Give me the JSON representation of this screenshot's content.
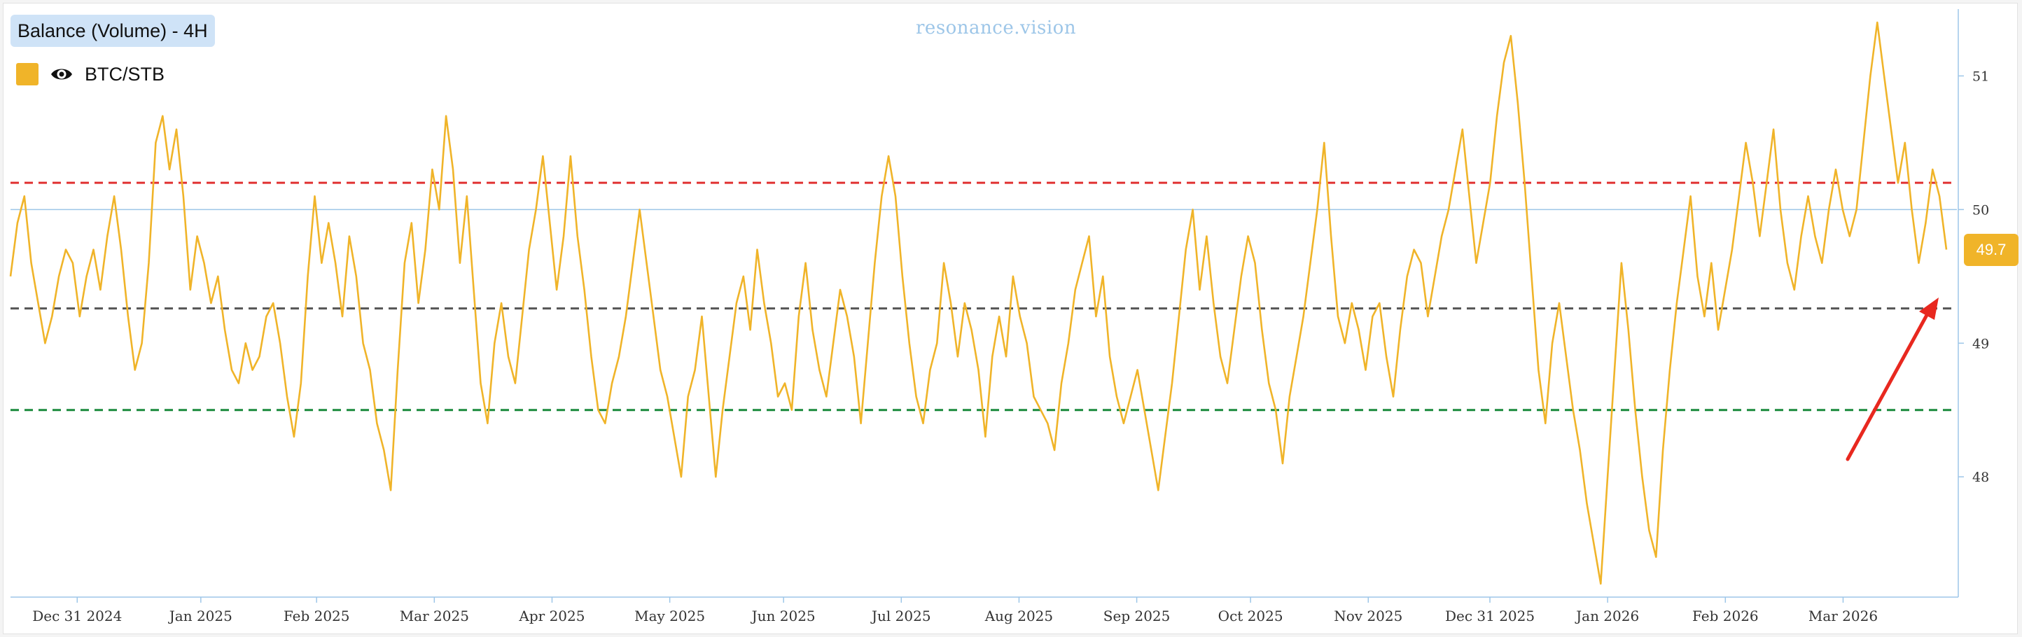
{
  "header": {
    "title": "Balance (Volume) - 4H",
    "watermark": "resonance.vision"
  },
  "legend": {
    "label": "BTC/STB",
    "color": "#f0b429",
    "icon": "eye-icon"
  },
  "current_value_label": "49.7",
  "colors": {
    "series": "#f0b429",
    "red_line": "#e03131",
    "gray_line": "#555555",
    "green_line": "#1a8a3c",
    "reference_line": "#9dc6e8",
    "axis": "#9dc6e8",
    "arrow": "#e8281f"
  },
  "chart_data": {
    "type": "line",
    "title": "Balance (Volume) - 4H",
    "series_name": "BTC/STB",
    "ylim": [
      47.1,
      51.5
    ],
    "y_ticks": [
      48,
      49,
      50,
      51
    ],
    "x_tick_labels": [
      "Dec 31 2024",
      "Jan 2025",
      "Feb 2025",
      "Mar 2025",
      "Apr 2025",
      "May 2025",
      "Jun 2025",
      "Jul 2025",
      "Aug 2025",
      "Sep 2025",
      "Oct 2025",
      "Nov 2025",
      "Dec 31 2025",
      "Jan 2026",
      "Feb 2026",
      "Mar 2026"
    ],
    "x_tick_index": [
      0.6,
      3.75,
      6.7,
      9.7,
      12.7,
      15.7,
      18.6,
      21.6,
      24.6,
      27.6,
      30.5,
      33.5,
      36.6,
      39.6,
      42.6,
      45.6
    ],
    "x_range": [
      -1.1,
      48.5
    ],
    "horizontal_lines": [
      {
        "name": "red-dashed",
        "value": 50.2,
        "style": "dashed"
      },
      {
        "name": "reference",
        "value": 50.0,
        "style": "solid"
      },
      {
        "name": "gray-dashed",
        "value": 49.26,
        "style": "dashed"
      },
      {
        "name": "green-dashed",
        "value": 48.5,
        "style": "dashed"
      }
    ],
    "last_value": 49.7,
    "values": [
      49.5,
      49.9,
      50.1,
      49.6,
      49.3,
      49.0,
      49.2,
      49.5,
      49.7,
      49.6,
      49.2,
      49.5,
      49.7,
      49.4,
      49.8,
      50.1,
      49.7,
      49.2,
      48.8,
      49.0,
      49.6,
      50.5,
      50.7,
      50.3,
      50.6,
      50.1,
      49.4,
      49.8,
      49.6,
      49.3,
      49.5,
      49.1,
      48.8,
      48.7,
      49.0,
      48.8,
      48.9,
      49.2,
      49.3,
      49.0,
      48.6,
      48.3,
      48.7,
      49.5,
      50.1,
      49.6,
      49.9,
      49.6,
      49.2,
      49.8,
      49.5,
      49.0,
      48.8,
      48.4,
      48.2,
      47.9,
      48.8,
      49.6,
      49.9,
      49.3,
      49.7,
      50.3,
      50.0,
      50.7,
      50.3,
      49.6,
      50.1,
      49.4,
      48.7,
      48.4,
      49.0,
      49.3,
      48.9,
      48.7,
      49.2,
      49.7,
      50.0,
      50.4,
      49.9,
      49.4,
      49.8,
      50.4,
      49.8,
      49.4,
      48.9,
      48.5,
      48.4,
      48.7,
      48.9,
      49.2,
      49.6,
      50.0,
      49.6,
      49.2,
      48.8,
      48.6,
      48.3,
      48.0,
      48.6,
      48.8,
      49.2,
      48.6,
      48.0,
      48.5,
      48.9,
      49.3,
      49.5,
      49.1,
      49.7,
      49.3,
      49.0,
      48.6,
      48.7,
      48.5,
      49.2,
      49.6,
      49.1,
      48.8,
      48.6,
      49.0,
      49.4,
      49.2,
      48.9,
      48.4,
      49.0,
      49.6,
      50.1,
      50.4,
      50.1,
      49.5,
      49.0,
      48.6,
      48.4,
      48.8,
      49.0,
      49.6,
      49.3,
      48.9,
      49.3,
      49.1,
      48.8,
      48.3,
      48.9,
      49.2,
      48.9,
      49.5,
      49.2,
      49.0,
      48.6,
      48.5,
      48.4,
      48.2,
      48.7,
      49.0,
      49.4,
      49.6,
      49.8,
      49.2,
      49.5,
      48.9,
      48.6,
      48.4,
      48.6,
      48.8,
      48.5,
      48.2,
      47.9,
      48.3,
      48.7,
      49.2,
      49.7,
      50.0,
      49.4,
      49.8,
      49.3,
      48.9,
      48.7,
      49.1,
      49.5,
      49.8,
      49.6,
      49.1,
      48.7,
      48.5,
      48.1,
      48.6,
      48.9,
      49.2,
      49.6,
      50.0,
      50.5,
      49.8,
      49.2,
      49.0,
      49.3,
      49.1,
      48.8,
      49.2,
      49.3,
      48.9,
      48.6,
      49.1,
      49.5,
      49.7,
      49.6,
      49.2,
      49.5,
      49.8,
      50.0,
      50.3,
      50.6,
      50.1,
      49.6,
      49.9,
      50.2,
      50.7,
      51.1,
      51.3,
      50.8,
      50.2,
      49.5,
      48.8,
      48.4,
      49.0,
      49.3,
      48.9,
      48.5,
      48.2,
      47.8,
      47.5,
      47.2,
      48.0,
      48.8,
      49.6,
      49.1,
      48.5,
      48.0,
      47.6,
      47.4,
      48.2,
      48.8,
      49.3,
      49.7,
      50.1,
      49.5,
      49.2,
      49.6,
      49.1,
      49.4,
      49.7,
      50.1,
      50.5,
      50.2,
      49.8,
      50.2,
      50.6,
      50.0,
      49.6,
      49.4,
      49.8,
      50.1,
      49.8,
      49.6,
      50.0,
      50.3,
      50.0,
      49.8,
      50.0,
      50.5,
      51.0,
      51.4,
      51.0,
      50.6,
      50.2,
      50.5,
      50.0,
      49.6,
      49.9,
      50.3,
      50.1,
      49.7
    ]
  },
  "annotation": {
    "type": "arrow",
    "label": "red trend arrow"
  }
}
